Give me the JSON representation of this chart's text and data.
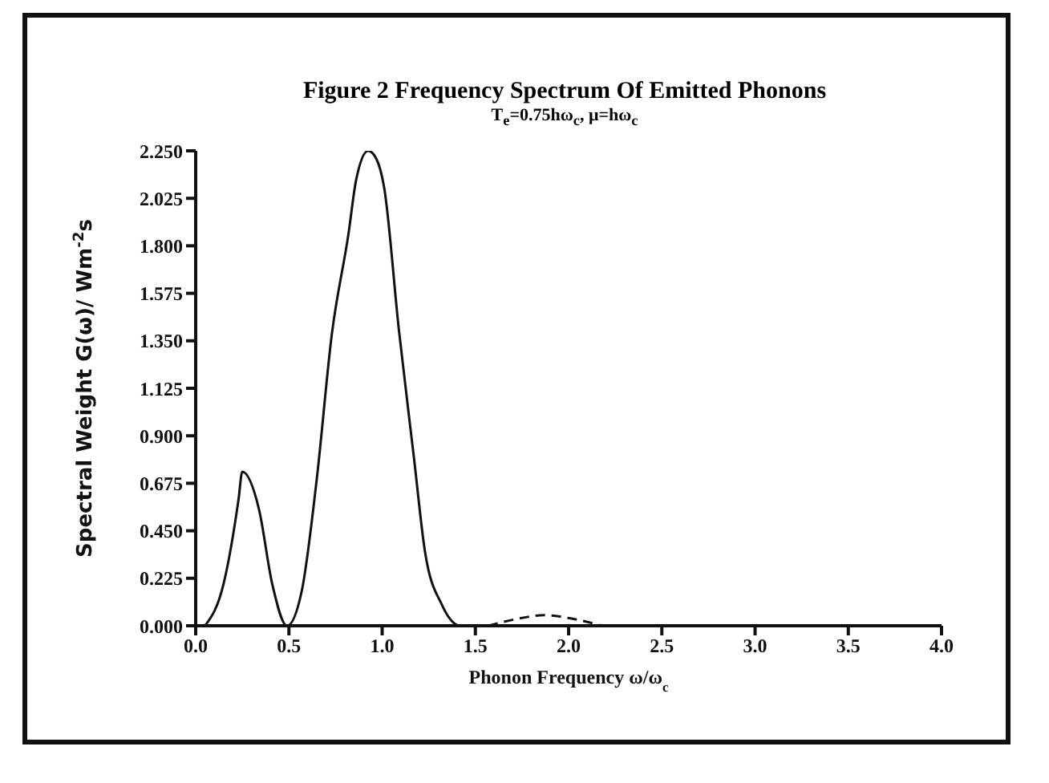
{
  "chart_data": {
    "type": "line",
    "title": "Figure 2  Frequency Spectrum Of Emitted Phonons",
    "subtitle": "T$_{e}$=0.75hω$_{c}$, μ=hω$_{c}$",
    "xlabel": "Phonon Frequency ω/ω$_{c}$",
    "ylabel": "Spectral Weight G(ω)/ Wm$^{-2}$s",
    "series": [
      {
        "color": "#111111",
        "line_style": "solid",
        "x": [
          0.05,
          0.15,
          0.23,
          0.25,
          0.34,
          0.41,
          0.49,
          0.57,
          0.65,
          0.73,
          0.82,
          0.86,
          0.925,
          0.97,
          1.01,
          1.09,
          1.17,
          1.23,
          1.32,
          1.42,
          4.0
        ],
        "values": [
          0,
          0.2,
          0.6,
          0.73,
          0.55,
          0.2,
          0,
          0.17,
          0.7,
          1.38,
          1.86,
          2.11,
          2.25,
          2.21,
          2.08,
          1.4,
          0.8,
          0.35,
          0.1,
          0,
          0
        ]
      },
      {
        "color": "#111111",
        "line_style": "dashed",
        "x": [
          1.57,
          1.71,
          1.87,
          2.01,
          2.18
        ],
        "values": [
          0,
          0.03,
          0.05,
          0.035,
          0
        ]
      }
    ],
    "xlim": [
      0,
      4.0
    ],
    "xticks": [
      {
        "value": 0,
        "label": "0.0"
      },
      {
        "value": 0.5,
        "label": "0.5"
      },
      {
        "value": 1,
        "label": "1.0"
      },
      {
        "value": 1.5,
        "label": "1.5"
      },
      {
        "value": 2,
        "label": "2.0"
      },
      {
        "value": 2.5,
        "label": "2.5"
      },
      {
        "value": 3,
        "label": "3.0"
      },
      {
        "value": 3.5,
        "label": "3.5"
      },
      {
        "value": 4,
        "label": "4.0"
      }
    ],
    "ylim": [
      0,
      2.25
    ],
    "yticks": [
      {
        "value": 0,
        "label": "0.000"
      },
      {
        "value": 0.225,
        "label": "0.225"
      },
      {
        "value": 0.45,
        "label": "0.450"
      },
      {
        "value": 0.675,
        "label": "0.675"
      },
      {
        "value": 0.9,
        "label": "0.900"
      },
      {
        "value": 1.125,
        "label": "1.125"
      },
      {
        "value": 1.35,
        "label": "1.350"
      },
      {
        "value": 1.575,
        "label": "1.575"
      },
      {
        "value": 1.8,
        "label": "1.800"
      },
      {
        "value": 2.025,
        "label": "2.025"
      },
      {
        "value": 2.25,
        "label": "2.250"
      }
    ],
    "grid": false,
    "legend": false,
    "marker": "none"
  }
}
